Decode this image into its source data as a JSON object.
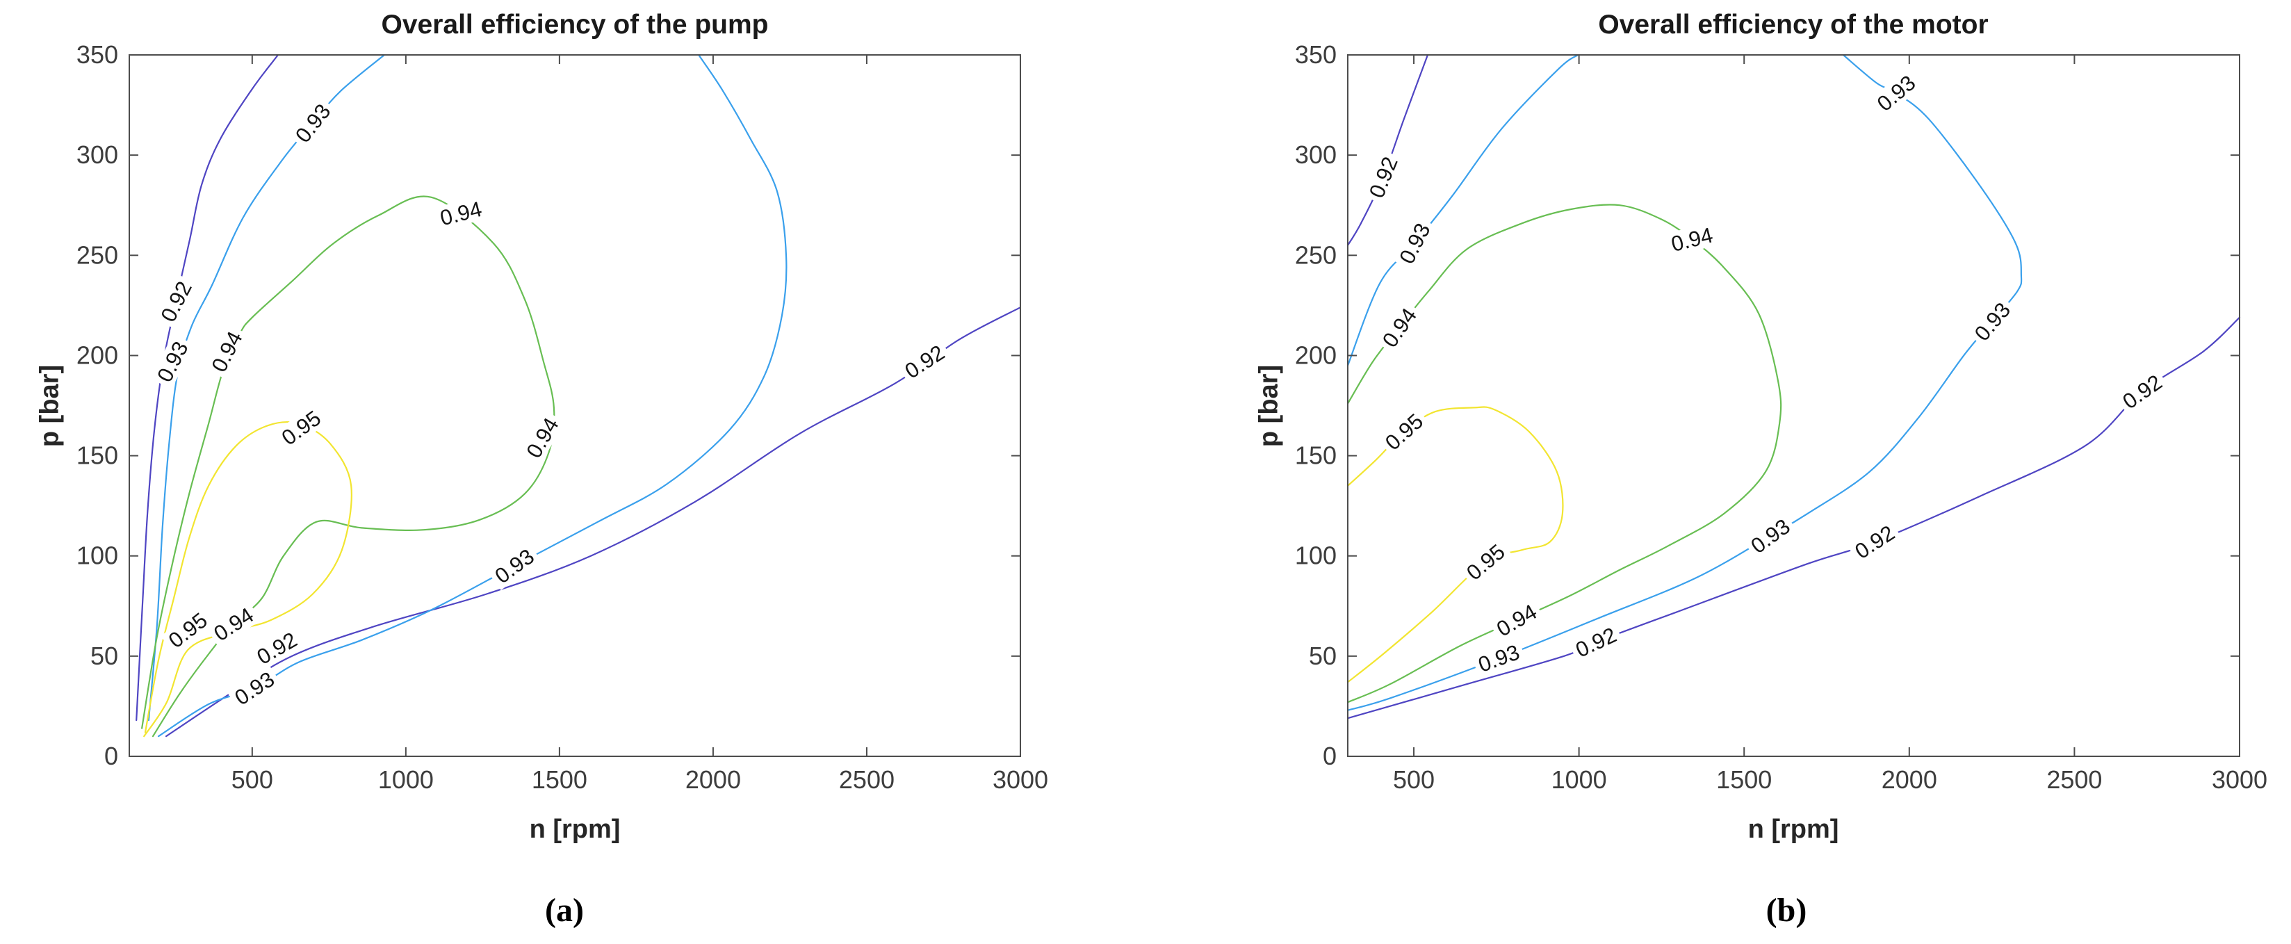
{
  "figure": {
    "background": "#ffffff",
    "panel_count": 2
  },
  "chart_data": [
    {
      "type": "contour",
      "id": "pump",
      "title": "Overall efficiency of the pump",
      "xlabel": "n [rpm]",
      "ylabel": "p [bar]",
      "caption": "(a)",
      "xlim": [
        100,
        3000
      ],
      "ylim": [
        0,
        350
      ],
      "xticks": [
        500,
        1000,
        1500,
        2000,
        2500,
        3000
      ],
      "yticks": [
        0,
        50,
        100,
        150,
        200,
        250,
        300,
        350
      ],
      "levels": [
        0.92,
        0.93,
        0.94,
        0.95
      ],
      "level_colors": {
        "0.92": "#4f45c3",
        "0.93": "#3aa0ec",
        "0.94": "#68be53",
        "0.95": "#f2e531"
      },
      "grid": false,
      "legend": "none",
      "contours": [
        {
          "level": 0.92,
          "color": "#4f45c3",
          "paths": [
            [
              [
                584,
                350
              ],
              [
                500,
                333
              ],
              [
                396,
                308
              ],
              [
                335,
                285
              ],
              [
                297,
                258
              ],
              [
                252,
                227
              ],
              [
                211,
                197
              ],
              [
                181,
                162
              ],
              [
                159,
                121
              ],
              [
                143,
                76
              ],
              [
                123,
                18
              ]
            ],
            [
              [
                220,
                10
              ],
              [
                426,
                31
              ],
              [
                629,
                50
              ],
              [
                901,
                65
              ],
              [
                1263,
                81
              ],
              [
                1602,
                100
              ],
              [
                1941,
                127
              ],
              [
                2281,
                161
              ],
              [
                2591,
                186
              ],
              [
                2801,
                208
              ],
              [
                3000,
                224
              ]
            ]
          ]
        },
        {
          "level": 0.93,
          "color": "#3aa0ec",
          "paths": [
            [
              [
                930,
                350
              ],
              [
                788,
                332
              ],
              [
                697,
                316
              ],
              [
                600,
                298
              ],
              [
                471,
                269
              ],
              [
                369,
                235
              ],
              [
                301,
                214
              ],
              [
                256,
                190
              ],
              [
                229,
                155
              ],
              [
                208,
                114
              ],
              [
                190,
                65
              ],
              [
                163,
                18
              ]
            ],
            [
              [
                195,
                10
              ],
              [
                358,
                26
              ],
              [
                507,
                34
              ],
              [
                652,
                47
              ],
              [
                856,
                58
              ],
              [
                1082,
                73
              ],
              [
                1353,
                95
              ],
              [
                1625,
                117
              ],
              [
                1851,
                136
              ],
              [
                2054,
                163
              ],
              [
                2167,
                190
              ],
              [
                2224,
                220
              ],
              [
                2238,
                249
              ],
              [
                2208,
                282
              ],
              [
                2122,
                308
              ],
              [
                2032,
                332
              ],
              [
                1953,
                350
              ]
            ]
          ]
        },
        {
          "level": 0.94,
          "color": "#68be53",
          "paths": [
            [
              [
                141,
                14
              ],
              [
                188,
                58
              ],
              [
                240,
                96
              ],
              [
                295,
                131
              ],
              [
                358,
                166
              ],
              [
                408,
                194
              ],
              [
                460,
                211
              ],
              [
                500,
                219
              ],
              [
                629,
                237
              ],
              [
                765,
                256
              ],
              [
                912,
                270
              ],
              [
                1082,
                279
              ],
              [
                1285,
                256
              ],
              [
                1387,
                228
              ],
              [
                1448,
                197
              ],
              [
                1482,
                174
              ],
              [
                1466,
                152
              ],
              [
                1387,
                131
              ],
              [
                1240,
                118
              ],
              [
                1059,
                113
              ],
              [
                856,
                114
              ],
              [
                709,
                117
              ],
              [
                602,
                100
              ],
              [
                532,
                79
              ],
              [
                439,
                66
              ],
              [
                358,
                51
              ],
              [
                263,
                31
              ],
              [
                177,
                10
              ]
            ]
          ]
        },
        {
          "level": 0.95,
          "color": "#f2e531",
          "paths": [
            [
              [
                152,
                12
              ],
              [
                195,
                48
              ],
              [
                245,
                79
              ],
              [
                295,
                109
              ],
              [
                358,
                135
              ],
              [
                448,
                155
              ],
              [
                550,
                165
              ],
              [
                652,
                166
              ],
              [
                754,
                156
              ],
              [
                822,
                135
              ],
              [
                792,
                103
              ],
              [
                697,
                81
              ],
              [
                561,
                68
              ],
              [
                426,
                62
              ],
              [
                290,
                53
              ],
              [
                222,
                27
              ],
              [
                148,
                10
              ]
            ]
          ]
        }
      ],
      "clabels": [
        {
          "text": "0.93",
          "n": 697,
          "p": 316,
          "rot": -52
        },
        {
          "text": "0.92",
          "n": 252,
          "p": 227,
          "rot": -63
        },
        {
          "text": "0.93",
          "n": 240,
          "p": 197,
          "rot": -63
        },
        {
          "text": "0.94",
          "n": 417,
          "p": 202,
          "rot": -63
        },
        {
          "text": "0.94",
          "n": 1179,
          "p": 271,
          "rot": -14
        },
        {
          "text": "0.95",
          "n": 659,
          "p": 164,
          "rot": -36
        },
        {
          "text": "0.94",
          "n": 1444,
          "p": 159,
          "rot": -60
        },
        {
          "text": "0.95",
          "n": 290,
          "p": 63,
          "rot": -38
        },
        {
          "text": "0.94",
          "n": 439,
          "p": 66,
          "rot": -33
        },
        {
          "text": "0.92",
          "n": 580,
          "p": 54,
          "rot": -30
        },
        {
          "text": "0.93",
          "n": 507,
          "p": 34,
          "rot": -33
        },
        {
          "text": "0.93",
          "n": 1353,
          "p": 95,
          "rot": -36
        },
        {
          "text": "0.92",
          "n": 2688,
          "p": 197,
          "rot": -33
        }
      ]
    },
    {
      "type": "contour",
      "id": "motor",
      "title": "Overall efficiency of the motor",
      "xlabel": "n [rpm]",
      "ylabel": "p [bar]",
      "caption": "(b)",
      "xlim": [
        300,
        3000
      ],
      "ylim": [
        0,
        350
      ],
      "xticks": [
        500,
        1000,
        1500,
        2000,
        2500,
        3000
      ],
      "yticks": [
        0,
        50,
        100,
        150,
        200,
        250,
        300,
        350
      ],
      "levels": [
        0.92,
        0.93,
        0.94,
        0.95
      ],
      "level_colors": {
        "0.92": "#4f45c3",
        "0.93": "#3aa0ec",
        "0.94": "#68be53",
        "0.95": "#f2e531"
      },
      "grid": false,
      "legend": "none",
      "contours": [
        {
          "level": 0.92,
          "color": "#4f45c3",
          "paths": [
            [
              [
                542,
                350
              ],
              [
                470,
                318
              ],
              [
                407,
                289
              ],
              [
                340,
                266
              ],
              [
                300,
                255
              ]
            ],
            [
              [
                300,
                19
              ],
              [
                639,
                35
              ],
              [
                954,
                50
              ],
              [
                1051,
                57
              ],
              [
                1312,
                73
              ],
              [
                1691,
                96
              ],
              [
                1895,
                107
              ],
              [
                2217,
                130
              ],
              [
                2533,
                155
              ],
              [
                2705,
                182
              ],
              [
                2890,
                202
              ],
              [
                3000,
                219
              ]
            ]
          ]
        },
        {
          "level": 0.93,
          "color": "#3aa0ec",
          "paths": [
            [
              [
                300,
                195
              ],
              [
                397,
                236
              ],
              [
                502,
                256
              ],
              [
                618,
                280
              ],
              [
                765,
                313
              ],
              [
                938,
                343
              ],
              [
                997,
                350
              ]
            ],
            [
              [
                1800,
                350
              ],
              [
                1901,
                336
              ],
              [
                1960,
                331
              ],
              [
                2059,
                318
              ],
              [
                2217,
                284
              ],
              [
                2322,
                256
              ],
              [
                2339,
                240
              ],
              [
                2327,
                232
              ],
              [
                2251,
                217
              ],
              [
                2165,
                200
              ],
              [
                2028,
                169
              ],
              [
                1880,
                142
              ],
              [
                1691,
                121
              ],
              [
                1579,
                110
              ],
              [
                1354,
                89
              ],
              [
                1060,
                69
              ],
              [
                744,
                48
              ],
              [
                428,
                29
              ],
              [
                300,
                23
              ]
            ]
          ]
        },
        {
          "level": 0.94,
          "color": "#68be53",
          "paths": [
            [
              [
                300,
                176
              ],
              [
                376,
                197
              ],
              [
                456,
                214
              ],
              [
                544,
                232
              ],
              [
                660,
                253
              ],
              [
                828,
                266
              ],
              [
                976,
                273
              ],
              [
                1123,
                275
              ],
              [
                1249,
                268
              ],
              [
                1342,
                258
              ],
              [
                1438,
                244
              ],
              [
                1544,
                221
              ],
              [
                1603,
                187
              ],
              [
                1607,
                166
              ],
              [
                1565,
                142
              ],
              [
                1438,
                121
              ],
              [
                1270,
                105
              ],
              [
                1123,
                93
              ],
              [
                971,
                80
              ],
              [
                811,
                68
              ],
              [
                639,
                55
              ],
              [
                428,
                36
              ],
              [
                300,
                27
              ]
            ]
          ]
        },
        {
          "level": 0.95,
          "color": "#f2e531",
          "paths": [
            [
              [
                300,
                135
              ],
              [
                386,
                148
              ],
              [
                470,
                162
              ],
              [
                565,
                172
              ],
              [
                681,
                174
              ],
              [
                744,
                173
              ],
              [
                849,
                162
              ],
              [
                933,
                142
              ],
              [
                950,
                121
              ],
              [
                912,
                107
              ],
              [
                828,
                103
              ],
              [
                717,
                97
              ],
              [
                555,
                72
              ],
              [
                407,
                51
              ],
              [
                300,
                37
              ]
            ]
          ]
        }
      ],
      "clabels": [
        {
          "text": "0.92",
          "n": 407,
          "p": 289,
          "rot": -68
        },
        {
          "text": "0.93",
          "n": 502,
          "p": 256,
          "rot": -63
        },
        {
          "text": "0.94",
          "n": 456,
          "p": 214,
          "rot": -55
        },
        {
          "text": "0.95",
          "n": 470,
          "p": 162,
          "rot": -42
        },
        {
          "text": "0.94",
          "n": 1342,
          "p": 258,
          "rot": -14
        },
        {
          "text": "0.95",
          "n": 717,
          "p": 97,
          "rot": -40
        },
        {
          "text": "0.94",
          "n": 811,
          "p": 68,
          "rot": -30
        },
        {
          "text": "0.93",
          "n": 757,
          "p": 49,
          "rot": -20
        },
        {
          "text": "0.92",
          "n": 1051,
          "p": 57,
          "rot": -25
        },
        {
          "text": "0.93",
          "n": 1579,
          "p": 110,
          "rot": -36
        },
        {
          "text": "0.92",
          "n": 1895,
          "p": 107,
          "rot": -33
        },
        {
          "text": "0.93",
          "n": 1960,
          "p": 331,
          "rot": -40
        },
        {
          "text": "0.93",
          "n": 2251,
          "p": 217,
          "rot": -50
        },
        {
          "text": "0.92",
          "n": 2705,
          "p": 182,
          "rot": -35
        }
      ]
    }
  ]
}
